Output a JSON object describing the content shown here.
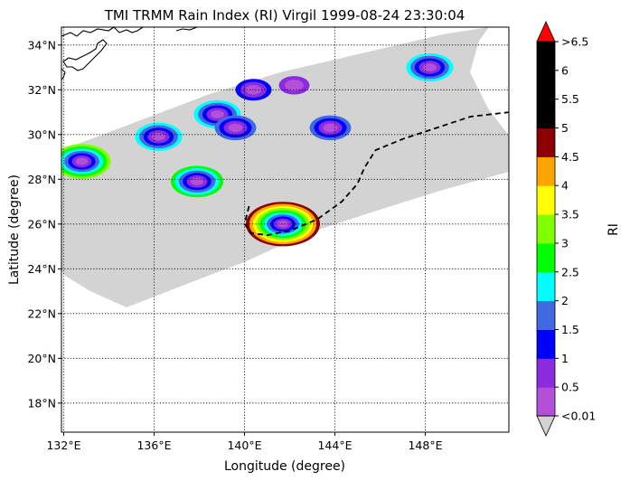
{
  "title": "TMI TRMM Rain Index (RI) Virgil 1999-08-24 23:30:04",
  "xlabel": "Longitude (degree)",
  "ylabel": "Latitude (degree)",
  "colorbar_label": "RI",
  "chart_data": {
    "type": "heatmap",
    "title": "TMI TRMM Rain Index (RI) Virgil 1999-08-24 23:30:04",
    "xlabel": "Longitude (degree)",
    "ylabel": "Latitude (degree)",
    "xlim": [
      131.9,
      151.7
    ],
    "ylim": [
      16.7,
      34.8
    ],
    "x_ticks": [
      132,
      136,
      140,
      144,
      148
    ],
    "x_tick_labels": [
      "132°E",
      "136°E",
      "140°E",
      "144°E",
      "148°E"
    ],
    "y_ticks": [
      18,
      20,
      22,
      24,
      26,
      28,
      30,
      32,
      34
    ],
    "y_tick_labels": [
      "18°N",
      "20°N",
      "22°N",
      "24°N",
      "26°N",
      "28°N",
      "30°N",
      "32°N",
      "34°N"
    ],
    "grid": true,
    "colorbar": {
      "label": "RI",
      "levels": [
        "<0.01",
        "0.5",
        "1",
        "1.5",
        "2",
        "2.5",
        "3",
        "3.5",
        "4",
        "4.5",
        "5",
        "5.5",
        "6",
        ">6.5"
      ],
      "colors": [
        "#b44fd8",
        "#8a2be2",
        "#0000ff",
        "#4169e1",
        "#00ffff",
        "#00ff00",
        "#7fff00",
        "#ffff00",
        "#ffa500",
        "#8b0000",
        "#000000",
        "#000000",
        "#000000"
      ],
      "under_color": "#d3d3d3",
      "over_color": "#ff0000"
    },
    "swath_color": "#d3d3d3",
    "track": {
      "style": "dashed",
      "color": "#000000",
      "lon": [
        140.2,
        140.0,
        140.3,
        141.0,
        142.0,
        143.2,
        144.3,
        145.0,
        145.3,
        145.8,
        147.0,
        148.5,
        150.0,
        151.7
      ],
      "lat": [
        26.8,
        26.0,
        25.6,
        25.5,
        25.7,
        26.2,
        27.0,
        27.8,
        28.5,
        29.3,
        29.8,
        30.3,
        30.8,
        31.0
      ]
    },
    "rain_cells": [
      {
        "lon": 141.7,
        "lat": 26.0,
        "peak_ri": 4.5
      },
      {
        "lon": 132.8,
        "lat": 28.8,
        "peak_ri": 3.0
      },
      {
        "lon": 137.9,
        "lat": 27.9,
        "peak_ri": 2.5
      },
      {
        "lon": 136.2,
        "lat": 29.9,
        "peak_ri": 2.0
      },
      {
        "lon": 138.8,
        "lat": 30.9,
        "peak_ri": 2.0
      },
      {
        "lon": 139.6,
        "lat": 30.3,
        "peak_ri": 1.5
      },
      {
        "lon": 143.8,
        "lat": 30.3,
        "peak_ri": 1.5
      },
      {
        "lon": 148.2,
        "lat": 33.0,
        "peak_ri": 2.0
      },
      {
        "lon": 140.4,
        "lat": 32.0,
        "peak_ri": 1.0
      },
      {
        "lon": 142.2,
        "lat": 32.2,
        "peak_ri": 0.5
      }
    ]
  }
}
